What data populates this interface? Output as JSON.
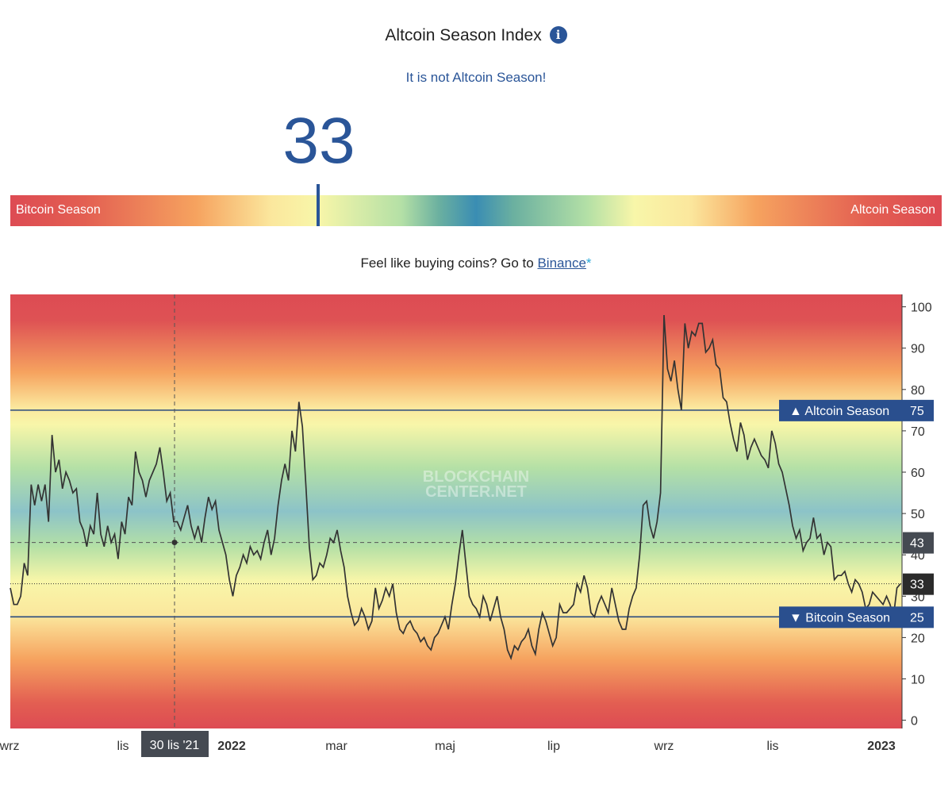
{
  "header": {
    "title": "Altcoin Season Index",
    "info_icon": "info-icon",
    "info_glyph": "i",
    "status": "It is not Altcoin Season!"
  },
  "gauge": {
    "value": "33",
    "value_number": 33,
    "left_label": "Bitcoin Season",
    "right_label": "Altcoin Season"
  },
  "promo": {
    "text": "Feel like buying coins? Go to ",
    "link": "Binance",
    "asterisk": "*"
  },
  "colors": {
    "accent": "#2a5598",
    "bitcoin_season_red": "#dd4b53",
    "neutral_blue": "#3a8db3",
    "line": "#333333"
  },
  "chart_data": {
    "type": "line",
    "watermark": [
      "BLOCKCHAIN",
      "CENTER.NET"
    ],
    "ylim": [
      -2,
      103
    ],
    "y_ticks": [
      0,
      10,
      20,
      30,
      40,
      50,
      60,
      70,
      80,
      90,
      100
    ],
    "x_tick_labels": [
      "wrz",
      "lis",
      "2022",
      "mar",
      "maj",
      "lip",
      "wrz",
      "lis",
      "2023"
    ],
    "thresholds": [
      {
        "label": "▲ Altcoin Season",
        "value": 75
      },
      {
        "label": "▼ Bitcoin Season",
        "value": 25
      }
    ],
    "crosshair": {
      "date_label": "30 lis '21",
      "value": 43
    },
    "current_value": 33,
    "series": [
      {
        "values": [
          32,
          28,
          28,
          30,
          38,
          35,
          57,
          52,
          57,
          53,
          57,
          48,
          69,
          60,
          63,
          56,
          60,
          58,
          55,
          56,
          48,
          46,
          42,
          47,
          45,
          55,
          45,
          42,
          47,
          43,
          45,
          39,
          48,
          45,
          54,
          52,
          65,
          60,
          58,
          54,
          58,
          60,
          62,
          66,
          60,
          53,
          55,
          48,
          48,
          46,
          49,
          52,
          47,
          44,
          47,
          43,
          49,
          54,
          51,
          53,
          46,
          43,
          40,
          34,
          30,
          35,
          37,
          40,
          38,
          42,
          40,
          41,
          39,
          43,
          46,
          40,
          44,
          52,
          58,
          62,
          58,
          70,
          65,
          77,
          71,
          57,
          42,
          34,
          35,
          38,
          37,
          40,
          44,
          43,
          46,
          41,
          37,
          30,
          26,
          23,
          24,
          27,
          25,
          22,
          24,
          32,
          27,
          29,
          32,
          30,
          33,
          26,
          22,
          21,
          23,
          24,
          22,
          21,
          19,
          20,
          18,
          17,
          20,
          21,
          23,
          25,
          22,
          28,
          33,
          40,
          46,
          38,
          30,
          28,
          27,
          25,
          30,
          28,
          24,
          27,
          30,
          25,
          22,
          17,
          15,
          18,
          17,
          19,
          20,
          22,
          18,
          16,
          22,
          26,
          24,
          21,
          18,
          20,
          28,
          26,
          26,
          27,
          28,
          33,
          31,
          35,
          32,
          26,
          25,
          28,
          30,
          28,
          26,
          32,
          28,
          24,
          22,
          22,
          27,
          30,
          32,
          40,
          52,
          53,
          47,
          44,
          48,
          55,
          98,
          85,
          82,
          87,
          80,
          75,
          96,
          90,
          94,
          93,
          96,
          96,
          89,
          90,
          92,
          86,
          85,
          78,
          77,
          72,
          68,
          65,
          72,
          69,
          63,
          66,
          68,
          66,
          64,
          63,
          61,
          70,
          67,
          62,
          60,
          56,
          52,
          47,
          44,
          46,
          41,
          43,
          44,
          49,
          44,
          45,
          40,
          43,
          42,
          34,
          35,
          35,
          36,
          33,
          31,
          34,
          33,
          31,
          27,
          28,
          31,
          30,
          29,
          28,
          30,
          28,
          25,
          32,
          33
        ],
        "current": 33
      }
    ]
  }
}
